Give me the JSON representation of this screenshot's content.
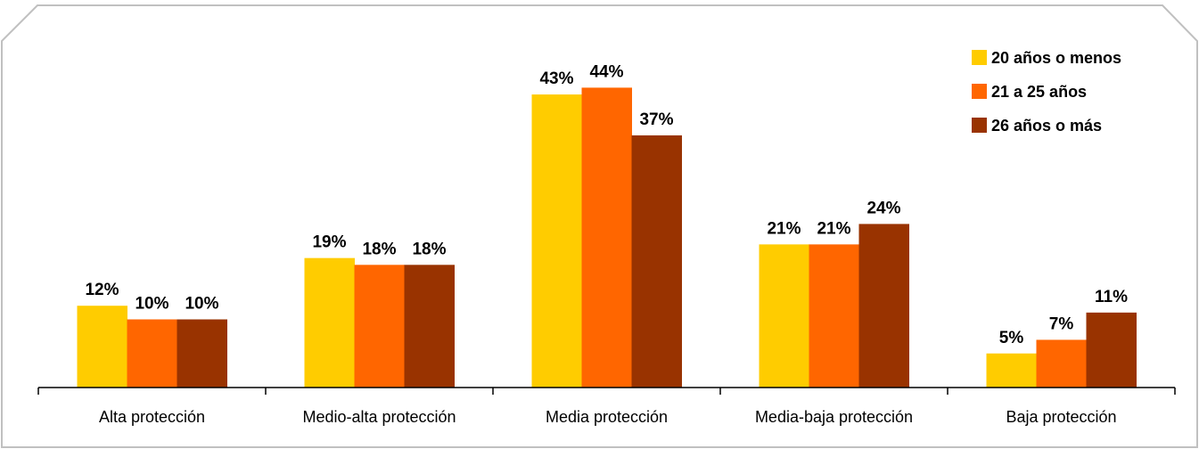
{
  "chart_data": {
    "type": "bar",
    "title": "",
    "xlabel": "",
    "ylabel": "",
    "ylim": [
      0,
      50
    ],
    "grid": false,
    "legend_position": "top-right",
    "categories": [
      "Alta protección",
      "Medio-alta protección",
      "Media protección",
      "Media-baja protección",
      "Baja protección"
    ],
    "series": [
      {
        "name": "20 años o menos",
        "color": "#FFCC00",
        "values": [
          12,
          19,
          43,
          21,
          5
        ],
        "labels": [
          "12%",
          "19%",
          "43%",
          "21%",
          "5%"
        ]
      },
      {
        "name": "21 a 25 años",
        "color": "#FF6600",
        "values": [
          10,
          18,
          44,
          21,
          7
        ],
        "labels": [
          "10%",
          "18%",
          "44%",
          "21%",
          "7%"
        ]
      },
      {
        "name": "26 años o más",
        "color": "#993300",
        "values": [
          10,
          18,
          37,
          24,
          11
        ],
        "labels": [
          "10%",
          "18%",
          "37%",
          "24%",
          "11%"
        ]
      }
    ]
  }
}
